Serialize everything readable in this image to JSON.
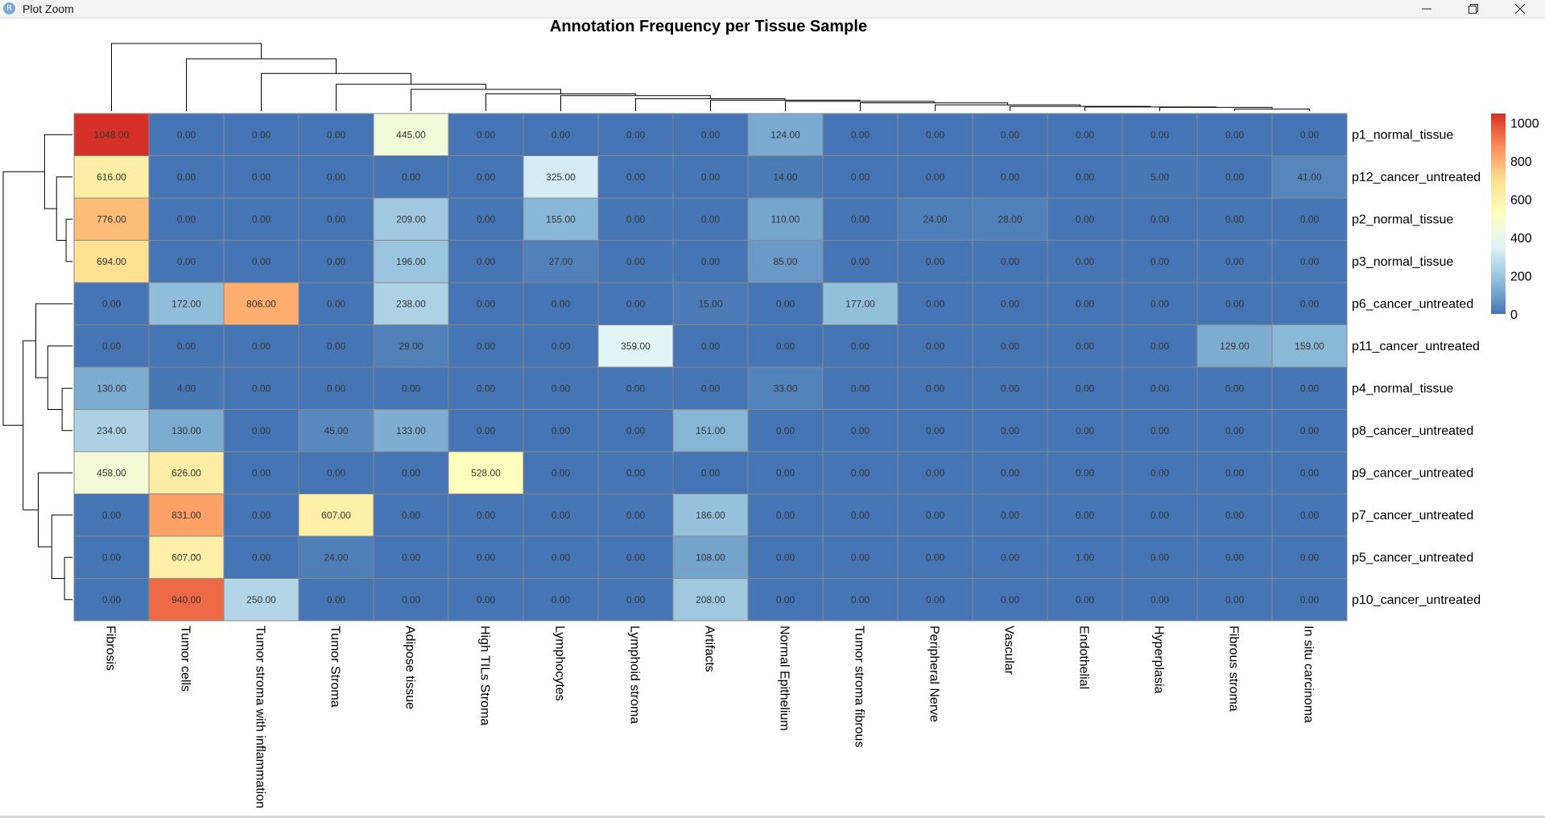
{
  "window": {
    "title": "Plot Zoom",
    "app_icon": "R",
    "controls": [
      {
        "icon": "minimize-icon"
      },
      {
        "icon": "restore-icon"
      },
      {
        "icon": "close-icon"
      }
    ]
  },
  "chart_data": {
    "type": "heatmap",
    "title": "Annotation Frequency per Tissue Sample",
    "columns": [
      "Fibrosis",
      "Tumor cells",
      "Tumor stroma with inflammation",
      "Tumor Stroma",
      "Adipose tissue",
      "High TILs Stroma",
      "Lymphocytes",
      "Lymphoid stroma",
      "Artifacts",
      "Normal Epithelium",
      "Tumor stroma fibrous",
      "Peripheral Nerve",
      "Vascular",
      "Endothelial",
      "Hyperplasia",
      "Fibrous stroma",
      "In situ carcinoma"
    ],
    "rows": [
      "p1_normal_tissue",
      "p12_cancer_untreated",
      "p2_normal_tissue",
      "p3_normal_tissue",
      "p6_cancer_untreated",
      "p11_cancer_untreated",
      "p4_normal_tissue",
      "p8_cancer_untreated",
      "p9_cancer_untreated",
      "p7_cancer_untreated",
      "p5_cancer_untreated",
      "p10_cancer_untreated"
    ],
    "values": [
      [
        1048,
        0,
        0,
        0,
        445,
        0,
        0,
        0,
        0,
        124,
        0,
        0,
        0,
        0,
        0,
        0,
        0
      ],
      [
        616,
        0,
        0,
        0,
        0,
        0,
        325,
        0,
        0,
        14,
        0,
        0,
        0,
        0,
        5,
        0,
        41
      ],
      [
        776,
        0,
        0,
        0,
        209,
        0,
        155,
        0,
        0,
        110,
        0,
        24,
        28,
        0,
        0,
        0,
        0
      ],
      [
        694,
        0,
        0,
        0,
        196,
        0,
        27,
        0,
        0,
        85,
        0,
        0,
        0,
        0,
        0,
        0,
        0
      ],
      [
        0,
        172,
        806,
        0,
        238,
        0,
        0,
        0,
        15,
        0,
        177,
        0,
        0,
        0,
        0,
        0,
        0
      ],
      [
        0,
        0,
        0,
        0,
        29,
        0,
        0,
        359,
        0,
        0,
        0,
        0,
        0,
        0,
        0,
        129,
        159
      ],
      [
        130,
        4,
        0,
        0,
        0,
        0,
        0,
        0,
        0,
        33,
        0,
        0,
        0,
        0,
        0,
        0,
        0
      ],
      [
        234,
        130,
        0,
        45,
        133,
        0,
        0,
        0,
        151,
        0,
        0,
        0,
        0,
        0,
        0,
        0,
        0
      ],
      [
        458,
        626,
        0,
        0,
        0,
        528,
        0,
        0,
        0,
        0,
        0,
        0,
        0,
        0,
        0,
        0,
        0
      ],
      [
        0,
        831,
        0,
        607,
        0,
        0,
        0,
        0,
        186,
        0,
        0,
        0,
        0,
        0,
        0,
        0,
        0
      ],
      [
        0,
        607,
        0,
        24,
        0,
        0,
        0,
        0,
        108,
        0,
        0,
        0,
        0,
        1,
        0,
        0,
        0
      ],
      [
        0,
        940,
        250,
        0,
        0,
        0,
        0,
        0,
        208,
        0,
        0,
        0,
        0,
        0,
        0,
        0,
        0
      ]
    ],
    "cell_labels": [
      [
        "1048.00",
        "0.00",
        "0.00",
        "0.00",
        "445.00",
        "0.00",
        "0.00",
        "0.00",
        "0.00",
        "124.00",
        "0.00",
        "0.00",
        "0.00",
        "0.00",
        "0.00",
        "0.00",
        "0.00"
      ],
      [
        "616.00",
        "0.00",
        "0.00",
        "0.00",
        "0.00",
        "0.00",
        "325.00",
        "0.00",
        "0.00",
        "14.00",
        "0.00",
        "0.00",
        "0.00",
        "0.00",
        "5.00",
        "0.00",
        "41.00"
      ],
      [
        "776.00",
        "0.00",
        "0.00",
        "0.00",
        "209.00",
        "0.00",
        "155.00",
        "0.00",
        "0.00",
        "110.00",
        "0.00",
        "24.00",
        "28.00",
        "0.00",
        "0.00",
        "0.00",
        "0.00"
      ],
      [
        "694.00",
        "0.00",
        "0.00",
        "0.00",
        "196.00",
        "0.00",
        "27.00",
        "0.00",
        "0.00",
        "85.00",
        "0.00",
        "0.00",
        "0.00",
        "0.00",
        "0.00",
        "0.00",
        "0.00"
      ],
      [
        "0.00",
        "172.00",
        "806.00",
        "0.00",
        "238.00",
        "0.00",
        "0.00",
        "0.00",
        "15.00",
        "0.00",
        "177.00",
        "0.00",
        "0.00",
        "0.00",
        "0.00",
        "0.00",
        "0.00"
      ],
      [
        "0.00",
        "0.00",
        "0.00",
        "0.00",
        "29.00",
        "0.00",
        "0.00",
        "359.00",
        "0.00",
        "0.00",
        "0.00",
        "0.00",
        "0.00",
        "0.00",
        "0.00",
        "129.00",
        "159.00"
      ],
      [
        "130.00",
        "4.00",
        "0.00",
        "0.00",
        "0.00",
        "0.00",
        "0.00",
        "0.00",
        "0.00",
        "33.00",
        "0.00",
        "0.00",
        "0.00",
        "0.00",
        "0.00",
        "0.00",
        "0.00"
      ],
      [
        "234.00",
        "130.00",
        "0.00",
        "45.00",
        "133.00",
        "0.00",
        "0.00",
        "0.00",
        "151.00",
        "0.00",
        "0.00",
        "0.00",
        "0.00",
        "0.00",
        "0.00",
        "0.00",
        "0.00"
      ],
      [
        "458.00",
        "626.00",
        "0.00",
        "0.00",
        "0.00",
        "528.00",
        "0.00",
        "0.00",
        "0.00",
        "0.00",
        "0.00",
        "0.00",
        "0.00",
        "0.00",
        "0.00",
        "0.00",
        "0.00"
      ],
      [
        "0.00",
        "831.00",
        "0.00",
        "607.00",
        "0.00",
        "0.00",
        "0.00",
        "0.00",
        "186.00",
        "0.00",
        "0.00",
        "0.00",
        "0.00",
        "0.00",
        "0.00",
        "0.00",
        "0.00"
      ],
      [
        "0.00",
        "607.00",
        "0.00",
        "24.00",
        "0.00",
        "0.00",
        "0.00",
        "0.00",
        "108.00",
        "0.00",
        "0.00",
        "0.00",
        "0.00",
        "1.00",
        "0.00",
        "0.00",
        "0.00"
      ],
      [
        "0.00",
        "940.00",
        "250.00",
        "0.00",
        "0.00",
        "0.00",
        "0.00",
        "0.00",
        "208.00",
        "0.00",
        "0.00",
        "0.00",
        "0.00",
        "0.00",
        "0.00",
        "0.00",
        "0.00"
      ]
    ],
    "color_scale": {
      "range": [
        0,
        1048
      ],
      "stops": [
        {
          "value": 0,
          "color": "#4575b4"
        },
        {
          "value": 175,
          "color": "#91bfdb"
        },
        {
          "value": 350,
          "color": "#e0f3f8"
        },
        {
          "value": 524,
          "color": "#ffffbf"
        },
        {
          "value": 700,
          "color": "#fee090"
        },
        {
          "value": 875,
          "color": "#fc8d59"
        },
        {
          "value": 1048,
          "color": "#d73027"
        }
      ]
    },
    "legend": {
      "position": "right",
      "ticks": [
        "1000",
        "800",
        "600",
        "400",
        "200",
        "0"
      ],
      "tick_values": [
        1000,
        800,
        600,
        400,
        200,
        0
      ]
    },
    "dendrograms": {
      "rows": true,
      "columns": true
    },
    "grid": true
  }
}
